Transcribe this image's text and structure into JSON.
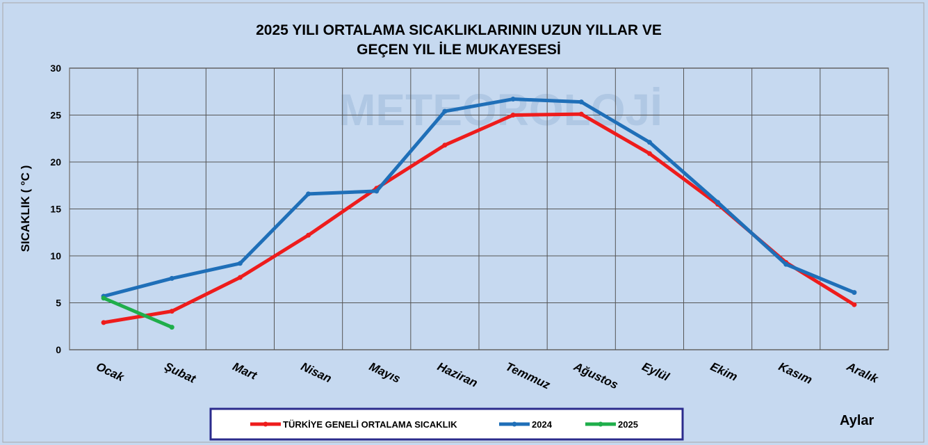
{
  "chart_data": {
    "type": "line",
    "title": [
      "2025 YILI ORTALAMA SICAKLIKLARININ UZUN YILLAR VE",
      "GEÇEN  YIL İLE MUKAYESESİ"
    ],
    "watermark": "METEOROLOJİ",
    "y_label": "SICAKLIK ( °C )",
    "x_label": "Aylar",
    "categories": [
      "Ocak",
      "Şubat",
      "Mart",
      "Nisan",
      "Mayıs",
      "Haziran",
      "Temmuz",
      "Ağustos",
      "Eylül",
      "Ekim",
      "Kasım",
      "Aralık"
    ],
    "series": [
      {
        "name": "TÜRKİYE GENELİ ORTALAMA SICAKLIK",
        "color": "#ee1c1c",
        "values": [
          2.9,
          4.1,
          7.7,
          12.2,
          17.2,
          21.8,
          25.0,
          25.1,
          20.9,
          15.5,
          9.3,
          4.8
        ]
      },
      {
        "name": "2024",
        "color": "#1f6fb8",
        "values": [
          5.7,
          7.6,
          9.2,
          16.6,
          16.9,
          25.4,
          26.7,
          26.4,
          22.1,
          15.7,
          9.1,
          6.1
        ]
      },
      {
        "name": "2025",
        "color": "#1fae4b",
        "values": [
          5.5,
          2.4,
          null,
          null,
          null,
          null,
          null,
          null,
          null,
          null,
          null,
          null
        ]
      }
    ],
    "ylim": [
      0,
      30
    ],
    "yticks": [
      0,
      5,
      10,
      15,
      20,
      25,
      30
    ],
    "grid": true
  }
}
